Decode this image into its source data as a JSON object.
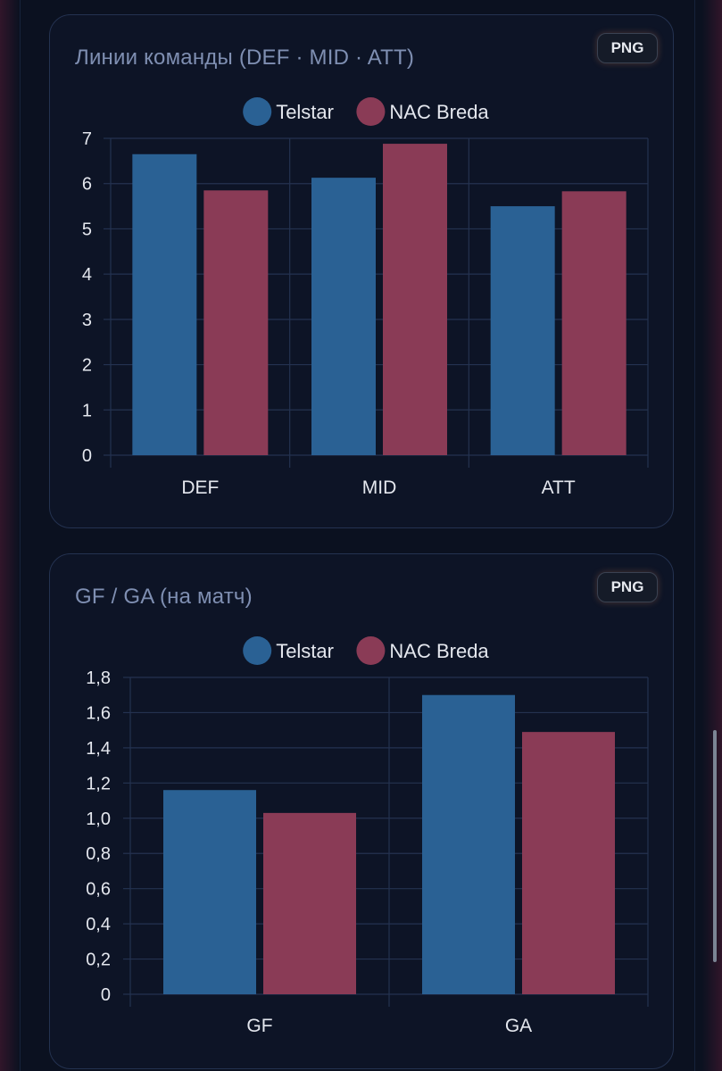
{
  "colors": {
    "telstar": "#2a6194",
    "nac": "#8a3b56",
    "grid": "#243250",
    "axis": "#4a5a7a"
  },
  "cards": [
    {
      "title": "Линии команды (DEF · MID · ATT)",
      "export_label": "PNG"
    },
    {
      "title": "GF / GA (на матч)",
      "export_label": "PNG"
    }
  ],
  "chart_data": [
    {
      "type": "bar",
      "title": "Линии команды (DEF · MID · ATT)",
      "categories": [
        "DEF",
        "MID",
        "ATT"
      ],
      "series": [
        {
          "name": "Telstar",
          "values": [
            6.65,
            6.13,
            5.5
          ]
        },
        {
          "name": "NAC Breda",
          "values": [
            5.85,
            6.88,
            5.83
          ]
        }
      ],
      "ylim": [
        0,
        7
      ],
      "yticks": [
        0,
        1,
        2,
        3,
        4,
        5,
        6,
        7
      ],
      "ytick_labels": [
        "0",
        "1",
        "2",
        "3",
        "4",
        "5",
        "6",
        "7"
      ],
      "legend": "top-center",
      "grid": true
    },
    {
      "type": "bar",
      "title": "GF / GA (на матч)",
      "categories": [
        "GF",
        "GA"
      ],
      "series": [
        {
          "name": "Telstar",
          "values": [
            1.16,
            1.7
          ]
        },
        {
          "name": "NAC Breda",
          "values": [
            1.03,
            1.49
          ]
        }
      ],
      "ylim": [
        0,
        1.8
      ],
      "yticks": [
        0,
        0.2,
        0.4,
        0.6,
        0.8,
        1.0,
        1.2,
        1.4,
        1.6,
        1.8
      ],
      "ytick_labels": [
        "0",
        "0,2",
        "0,4",
        "0,6",
        "0,8",
        "1,0",
        "1,2",
        "1,4",
        "1,6",
        "1,8"
      ],
      "legend": "top-center",
      "grid": true
    }
  ]
}
